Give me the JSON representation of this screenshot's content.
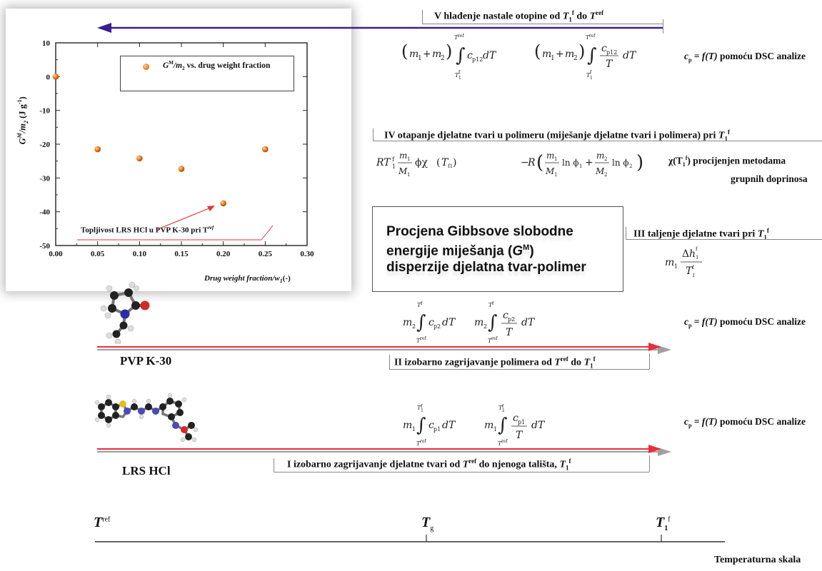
{
  "chart_data": {
    "type": "scatter",
    "legend": "G^M/m2 vs. drug weight fraction",
    "legend_main": "G",
    "legend_sup": "M",
    "legend_rest": "/m",
    "legend_sub": "2",
    "legend_tail": " vs. drug weight fraction",
    "ylabel_main": "G",
    "ylabel_sup": "M",
    "ylabel_mid": "/m",
    "ylabel_sub": "2",
    "ylabel_unit": " (J g",
    "ylabel_exp": "-1",
    "ylabel_close": ")",
    "xlabel": "Drug weight fraction/w",
    "xlabel_sub": "1",
    "xlabel_tail": "(-)",
    "xlim": [
      0,
      0.3
    ],
    "ylim": [
      -50,
      10
    ],
    "xticks": [
      "0.00",
      "0.05",
      "0.10",
      "0.15",
      "0.20",
      "0.25",
      "0.30"
    ],
    "yticks": [
      "10",
      "0",
      "-10",
      "-20",
      "-30",
      "-40",
      "-50"
    ],
    "points": [
      {
        "x": 0.0,
        "y": 0
      },
      {
        "x": 0.05,
        "y": -21.5
      },
      {
        "x": 0.1,
        "y": -24.2
      },
      {
        "x": 0.15,
        "y": -27.3
      },
      {
        "x": 0.2,
        "y": -37.5
      },
      {
        "x": 0.25,
        "y": -21.5
      }
    ],
    "point_color": "#f07c1e",
    "annotation": "Topljivost LRS HCl u PVP K-30 pri T",
    "annotation_sup": "ref",
    "annotation_color": "#e8303a"
  },
  "steps": {
    "v": {
      "label": "V  hlađenje nastale otopine od",
      "t1": "T",
      "t1_sub": "1",
      "t1_sup": "f",
      "mid": " do",
      "t2": "T",
      "t2_sup": "ref"
    },
    "iv": {
      "label": "IV  otapanje djelatne tvari u polimeru (miješanje djelatne tvari i polimera) pri",
      "t": "T",
      "t_sub": "1",
      "t_sup": "f"
    },
    "iii": {
      "label": "III  taljenje djelatne tvari pri",
      "t": "T",
      "t_sub": "1",
      "t_sup": "f"
    },
    "ii": {
      "label": "II  izobarno zagrijavanje polimera od",
      "t1": " T",
      "t1_sup": "ref",
      "mid": " do",
      "t2": "T",
      "t2_sub": "1",
      "t2_sup": "f"
    },
    "i": {
      "label": "I  izobarno zagrijavanje djelatne tvari od",
      "t1": "T",
      "t1_sup": "ref",
      "mid": " do njenoga tališta, ",
      "t2": "T",
      "t2_sub": "1",
      "t2_sup": "f"
    }
  },
  "notes": {
    "cp_dsc": "c",
    "cp_sub": "p",
    "cp_rest": " = ",
    "cp_f": "f",
    "cp_T": "(T)",
    "cp_tail": " pomoću DSC analize",
    "chi_line1": "χ(T",
    "chi_sub": "1",
    "chi_sup": "f",
    "chi_close": ") procijenjen metodama",
    "chi_line2": "grupnih doprinosa"
  },
  "center_box": {
    "line1": "Procjena Gibbsove slobodne",
    "line2a": "energije miješanja (",
    "line2b": "G",
    "line2c": "M",
    "line2d": ")",
    "line3": "disperzije djelatna tvar-polimer"
  },
  "compounds": {
    "polymer": "PVP K-30",
    "drug": "LRS HCl"
  },
  "scale": {
    "tref": "T",
    "tref_sup": "ref",
    "tg": "T",
    "tg_sub": "g",
    "t1f": "T",
    "t1f_sub": "1",
    "t1f_sup": "f",
    "caption": "Temperaturna skala"
  },
  "colors": {
    "arrow_red": "#e8303a",
    "arrow_purple": "#3b1f8f",
    "arrow_grey": "#a0a0a0"
  }
}
